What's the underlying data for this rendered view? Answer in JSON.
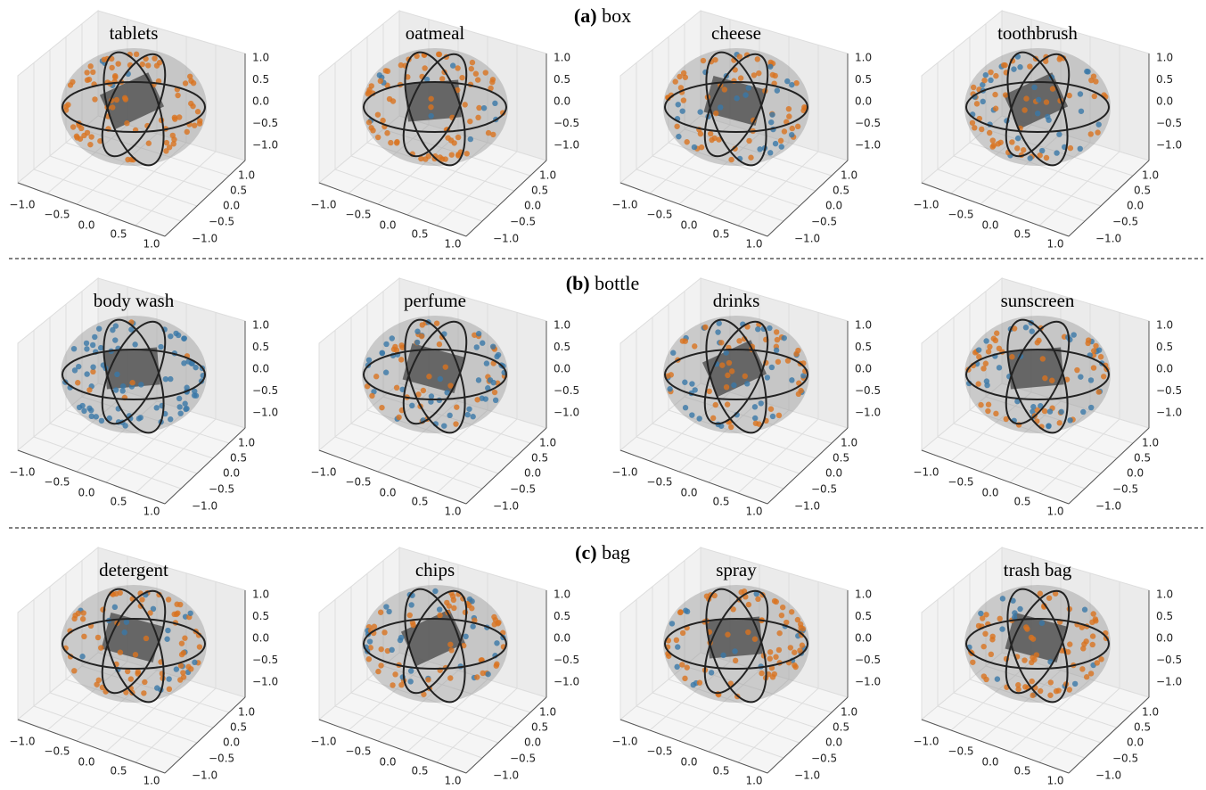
{
  "sections": [
    {
      "tag": "(a)",
      "label": "box",
      "panels": [
        "tablets",
        "oatmeal",
        "cheese",
        "toothbrush"
      ]
    },
    {
      "tag": "(b)",
      "label": "bottle",
      "panels": [
        "body wash",
        "perfume",
        "drinks",
        "sunscreen"
      ]
    },
    {
      "tag": "(c)",
      "label": "bag",
      "panels": [
        "detergent",
        "chips",
        "spray",
        "trash bag"
      ]
    }
  ],
  "axes": {
    "x_ticks": [
      "−1.0",
      "−0.5",
      "0.0",
      "0.5",
      "1.0"
    ],
    "y_ticks": [
      "1.0",
      "0.5",
      "0.0",
      "−0.5",
      "−1.0"
    ],
    "z_ticks": [
      "1.0",
      "0.5",
      "0.0",
      "−0.5",
      "−1.0"
    ]
  }
}
